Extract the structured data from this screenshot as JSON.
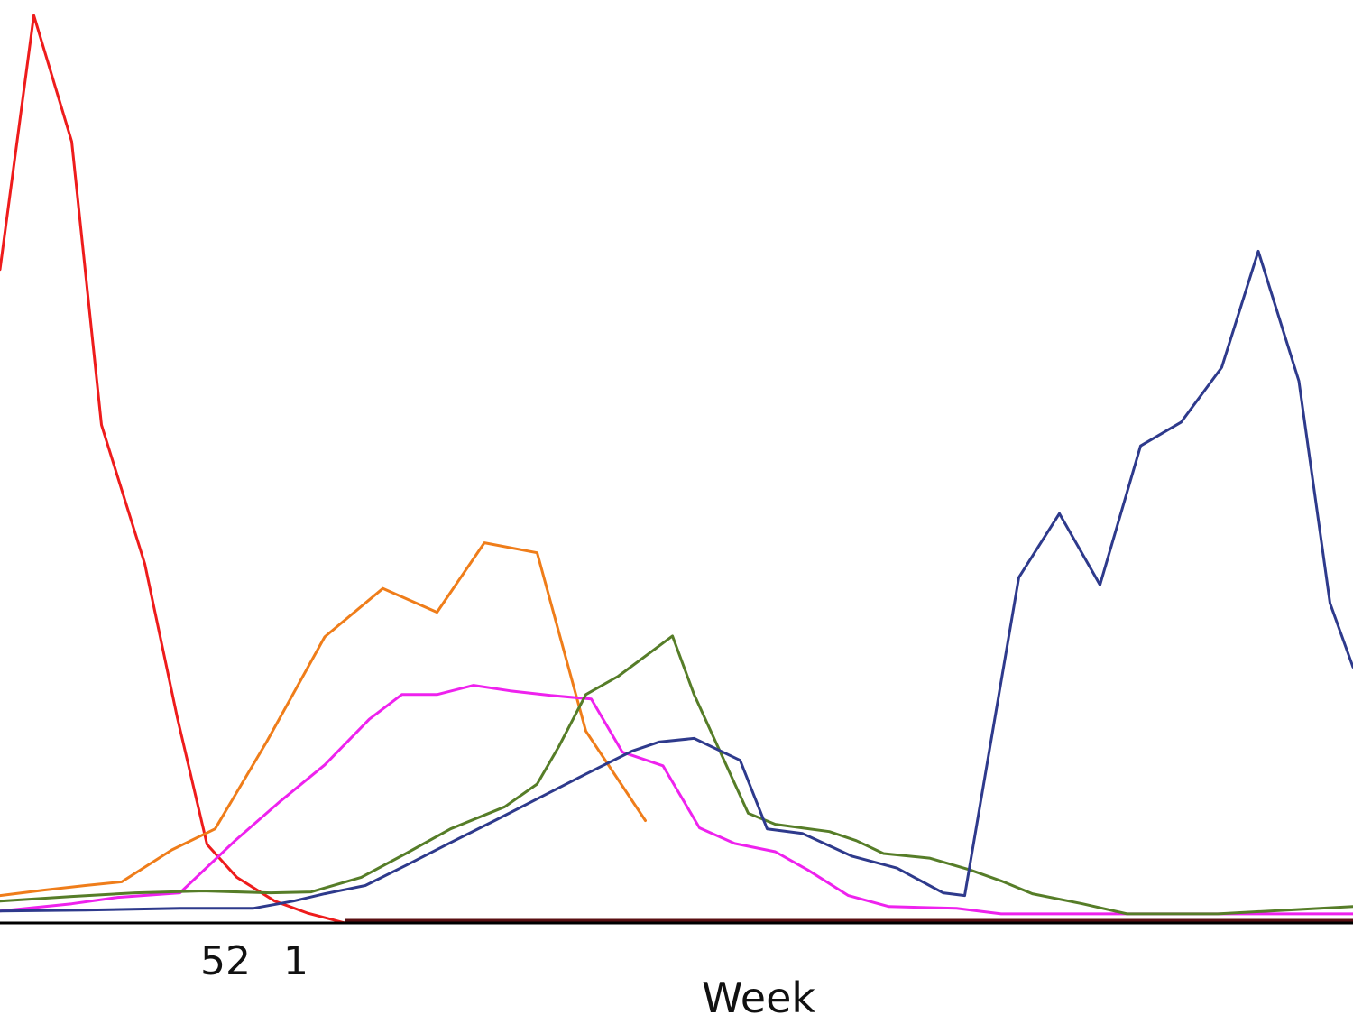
{
  "chart_data": {
    "type": "line",
    "xlabel": "Week",
    "ylabel": "",
    "xlim": [
      0,
      100
    ],
    "ylim": [
      0,
      100
    ],
    "grid": false,
    "legend": "none",
    "x_ticks": [
      {
        "x": 17,
        "label": "52"
      },
      {
        "x": 22,
        "label": "1"
      }
    ],
    "baseline_color": "#5a0f12",
    "series": [
      {
        "color": "#ee1c1c",
        "points": [
          [
            0,
            71.5
          ],
          [
            2.5,
            99.3
          ],
          [
            5.3,
            85.5
          ],
          [
            7.5,
            54.5
          ],
          [
            10.7,
            39.3
          ],
          [
            13.1,
            22.5
          ],
          [
            15.3,
            8.6
          ],
          [
            17.5,
            5.0
          ],
          [
            20.3,
            2.4
          ],
          [
            22.7,
            1.1
          ],
          [
            25.5,
            0
          ]
        ]
      },
      {
        "color": "#ef7d1a",
        "points": [
          [
            0,
            3.0
          ],
          [
            3.3,
            3.6
          ],
          [
            6.3,
            4.1
          ],
          [
            9.0,
            4.5
          ],
          [
            12.7,
            8.0
          ],
          [
            15.9,
            10.3
          ],
          [
            19.7,
            19.8
          ],
          [
            24.0,
            31.3
          ],
          [
            28.3,
            36.6
          ],
          [
            32.3,
            34.0
          ],
          [
            35.8,
            41.6
          ],
          [
            39.7,
            40.5
          ],
          [
            43.3,
            21.0
          ],
          [
            47.7,
            11.2
          ]
        ]
      },
      {
        "color": "#ee22ee",
        "points": [
          [
            0,
            1.3
          ],
          [
            5.3,
            2.1
          ],
          [
            8.7,
            2.8
          ],
          [
            13.3,
            3.3
          ],
          [
            17.3,
            8.9
          ],
          [
            20.7,
            13.3
          ],
          [
            24.0,
            17.3
          ],
          [
            27.3,
            22.3
          ],
          [
            29.7,
            25.0
          ],
          [
            32.3,
            25.0
          ],
          [
            35.0,
            26.0
          ],
          [
            37.7,
            25.4
          ],
          [
            40.7,
            24.9
          ],
          [
            43.7,
            24.5
          ],
          [
            46.0,
            18.7
          ],
          [
            49.0,
            17.2
          ],
          [
            51.7,
            10.4
          ],
          [
            54.3,
            8.7
          ],
          [
            57.3,
            7.8
          ],
          [
            59.7,
            5.8
          ],
          [
            62.7,
            3.0
          ],
          [
            65.7,
            1.8
          ],
          [
            70.7,
            1.6
          ],
          [
            74.0,
            1.0
          ],
          [
            80.0,
            1.0
          ],
          [
            100,
            1.0
          ]
        ]
      },
      {
        "color": "#567d28",
        "points": [
          [
            0,
            2.4
          ],
          [
            5.3,
            2.9
          ],
          [
            10.0,
            3.3
          ],
          [
            15.0,
            3.5
          ],
          [
            20.0,
            3.3
          ],
          [
            23.0,
            3.4
          ],
          [
            26.7,
            5.0
          ],
          [
            30.0,
            7.6
          ],
          [
            33.3,
            10.3
          ],
          [
            37.3,
            12.7
          ],
          [
            39.7,
            15.2
          ],
          [
            41.3,
            19.3
          ],
          [
            43.3,
            25.0
          ],
          [
            45.7,
            27.0
          ],
          [
            49.7,
            31.4
          ],
          [
            51.3,
            25.0
          ],
          [
            53.3,
            18.5
          ],
          [
            55.3,
            12.0
          ],
          [
            57.3,
            10.8
          ],
          [
            61.3,
            10.0
          ],
          [
            63.3,
            9.0
          ],
          [
            65.3,
            7.6
          ],
          [
            68.7,
            7.1
          ],
          [
            71.7,
            5.8
          ],
          [
            74.0,
            4.6
          ],
          [
            76.3,
            3.2
          ],
          [
            80.0,
            2.1
          ],
          [
            83.3,
            1.0
          ],
          [
            90.0,
            1.0
          ],
          [
            100,
            1.8
          ]
        ]
      },
      {
        "color": "#2e3a8c",
        "points": [
          [
            0,
            1.3
          ],
          [
            6.3,
            1.4
          ],
          [
            13.3,
            1.6
          ],
          [
            18.7,
            1.6
          ],
          [
            21.7,
            2.4
          ],
          [
            24.0,
            3.2
          ],
          [
            27.0,
            4.1
          ],
          [
            30.0,
            6.3
          ],
          [
            33.3,
            8.8
          ],
          [
            36.7,
            11.3
          ],
          [
            40.0,
            13.8
          ],
          [
            43.3,
            16.3
          ],
          [
            46.7,
            18.8
          ],
          [
            48.7,
            19.8
          ],
          [
            51.3,
            20.2
          ],
          [
            54.7,
            17.8
          ],
          [
            56.7,
            10.3
          ],
          [
            59.3,
            9.8
          ],
          [
            63.0,
            7.3
          ],
          [
            66.3,
            6.0
          ],
          [
            69.7,
            3.3
          ],
          [
            71.3,
            3.0
          ],
          [
            75.3,
            37.8
          ],
          [
            78.3,
            44.8
          ],
          [
            81.3,
            37.0
          ],
          [
            84.3,
            52.2
          ],
          [
            87.3,
            54.8
          ],
          [
            90.3,
            60.8
          ],
          [
            93.0,
            73.5
          ],
          [
            96.0,
            59.3
          ],
          [
            98.3,
            35.0
          ],
          [
            100,
            28.0
          ]
        ]
      }
    ]
  }
}
